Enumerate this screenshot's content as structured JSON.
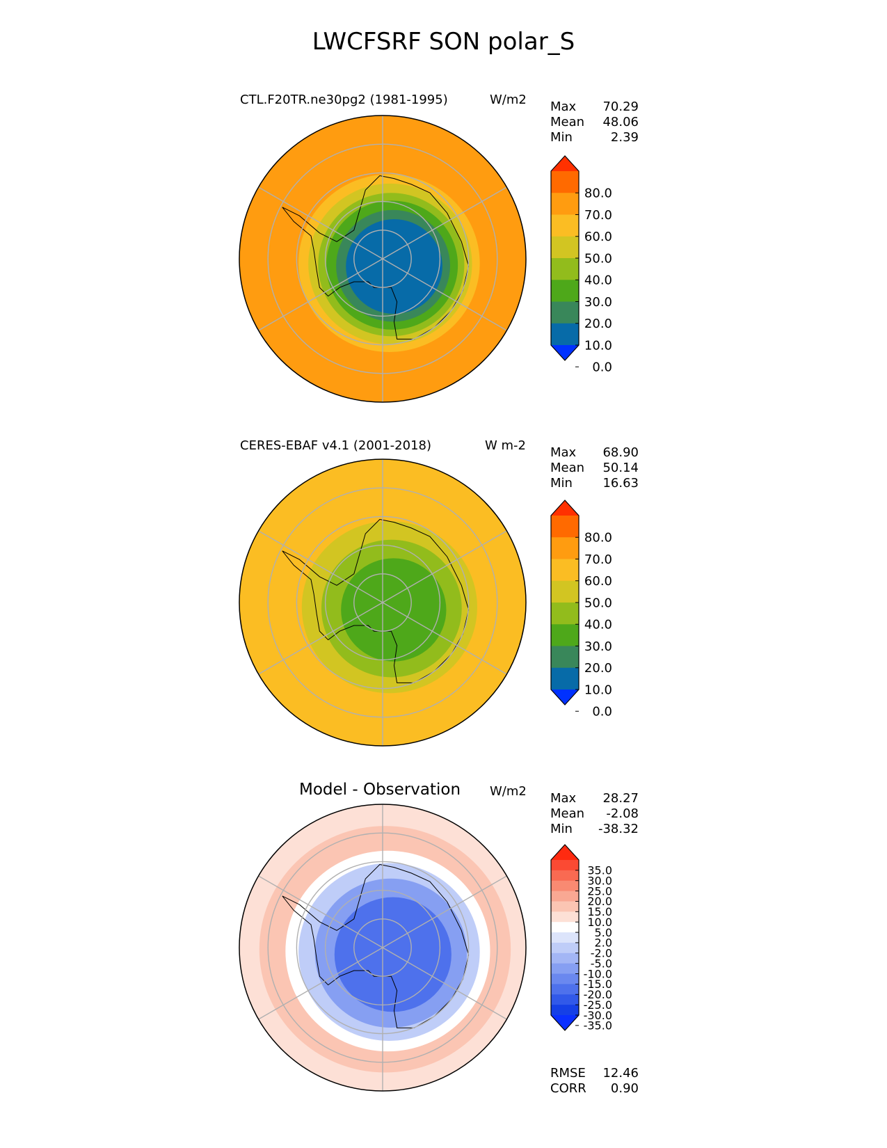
{
  "title": "LWCFSRF SON polar_S",
  "panels": [
    {
      "title_left": "CTL.F20TR.ne30pg2 (1981-1995)",
      "units": "W/m2",
      "stats": [
        {
          "label": "Max",
          "value": "70.29"
        },
        {
          "label": "Mean",
          "value": "48.06"
        },
        {
          "label": "Min",
          "value": "2.39"
        }
      ]
    },
    {
      "title_left": "CERES-EBAF v4.1 (2001-2018)",
      "units": "W m-2",
      "stats": [
        {
          "label": "Max",
          "value": "68.90"
        },
        {
          "label": "Mean",
          "value": "50.14"
        },
        {
          "label": "Min",
          "value": "16.63"
        }
      ]
    },
    {
      "title_center": "Model - Observation",
      "units": "W/m2",
      "stats": [
        {
          "label": "Max",
          "value": "28.27"
        },
        {
          "label": "Mean",
          "value": "-2.08"
        },
        {
          "label": "Min",
          "value": "-38.32"
        }
      ],
      "extra_stats": [
        {
          "label": "RMSE",
          "value": "12.46"
        },
        {
          "label": "CORR",
          "value": "0.90"
        }
      ]
    }
  ],
  "chart_data": [
    {
      "type": "heatmap",
      "projection": "south-polar-stereographic",
      "title": "CTL.F20TR.ne30pg2 (1981-1995)",
      "units": "W/m2",
      "colorbar": {
        "ticks": [
          "80.0",
          "70.0",
          "60.0",
          "50.0",
          "40.0",
          "30.0",
          "20.0",
          "10.0",
          "0.0"
        ],
        "colors": [
          "#ff3100",
          "#ff6a00",
          "#ff9c10",
          "#fbbd23",
          "#d2c522",
          "#92bc1c",
          "#4ea81a",
          "#39875a",
          "#076ba8",
          "#0031ff"
        ]
      },
      "field_levels": [
        {
          "outer": 1.0,
          "color": "#ff9c10"
        },
        {
          "outer": 0.62,
          "color": "#fbbd23"
        },
        {
          "outer": 0.56,
          "color": "#d2c522"
        },
        {
          "outer": 0.5,
          "color": "#92bc1c"
        },
        {
          "outer": 0.45,
          "color": "#4ea81a"
        },
        {
          "outer": 0.39,
          "color": "#39875a"
        },
        {
          "outer": 0.33,
          "color": "#076ba8"
        }
      ]
    },
    {
      "type": "heatmap",
      "projection": "south-polar-stereographic",
      "title": "CERES-EBAF v4.1 (2001-2018)",
      "units": "W m-2",
      "colorbar": {
        "ticks": [
          "80.0",
          "70.0",
          "60.0",
          "50.0",
          "40.0",
          "30.0",
          "20.0",
          "10.0",
          "0.0"
        ],
        "colors": [
          "#ff3100",
          "#ff6a00",
          "#ff9c10",
          "#fbbd23",
          "#d2c522",
          "#92bc1c",
          "#4ea81a",
          "#39875a",
          "#076ba8",
          "#0031ff"
        ]
      },
      "field_levels": [
        {
          "outer": 1.0,
          "color": "#fbbd23"
        },
        {
          "outer": 0.6,
          "color": "#d2c522"
        },
        {
          "outer": 0.48,
          "color": "#92bc1c"
        },
        {
          "outer": 0.36,
          "color": "#4ea81a"
        }
      ]
    },
    {
      "type": "heatmap",
      "projection": "south-polar-stereographic",
      "title": "Model - Observation",
      "units": "W/m2",
      "colorbar": {
        "ticks": [
          "35.0",
          "30.0",
          "25.0",
          "20.0",
          "15.0",
          "10.0",
          "5.0",
          "2.0",
          "-2.0",
          "-5.0",
          "-10.0",
          "-15.0",
          "-20.0",
          "-25.0",
          "-30.0",
          "-35.0"
        ],
        "colors": [
          "#ff2a10",
          "#fb4a33",
          "#f96a52",
          "#f98a72",
          "#f9a893",
          "#fbc5b3",
          "#fde0d6",
          "#ffffff",
          "#dce4fb",
          "#bfcdf8",
          "#a3b6f5",
          "#869ff2",
          "#6a88ef",
          "#4e71ec",
          "#3159e9",
          "#1540e6",
          "#0a30ff"
        ]
      },
      "field_levels": [
        {
          "outer": 1.0,
          "color": "#fde0d6"
        },
        {
          "outer": 0.86,
          "color": "#fbc5b3"
        },
        {
          "outer": 0.7,
          "color": "#ffffff"
        },
        {
          "outer": 0.62,
          "color": "#bfcdf8"
        },
        {
          "outer": 0.52,
          "color": "#869ff2"
        },
        {
          "outer": 0.4,
          "color": "#4e71ec"
        }
      ]
    }
  ]
}
